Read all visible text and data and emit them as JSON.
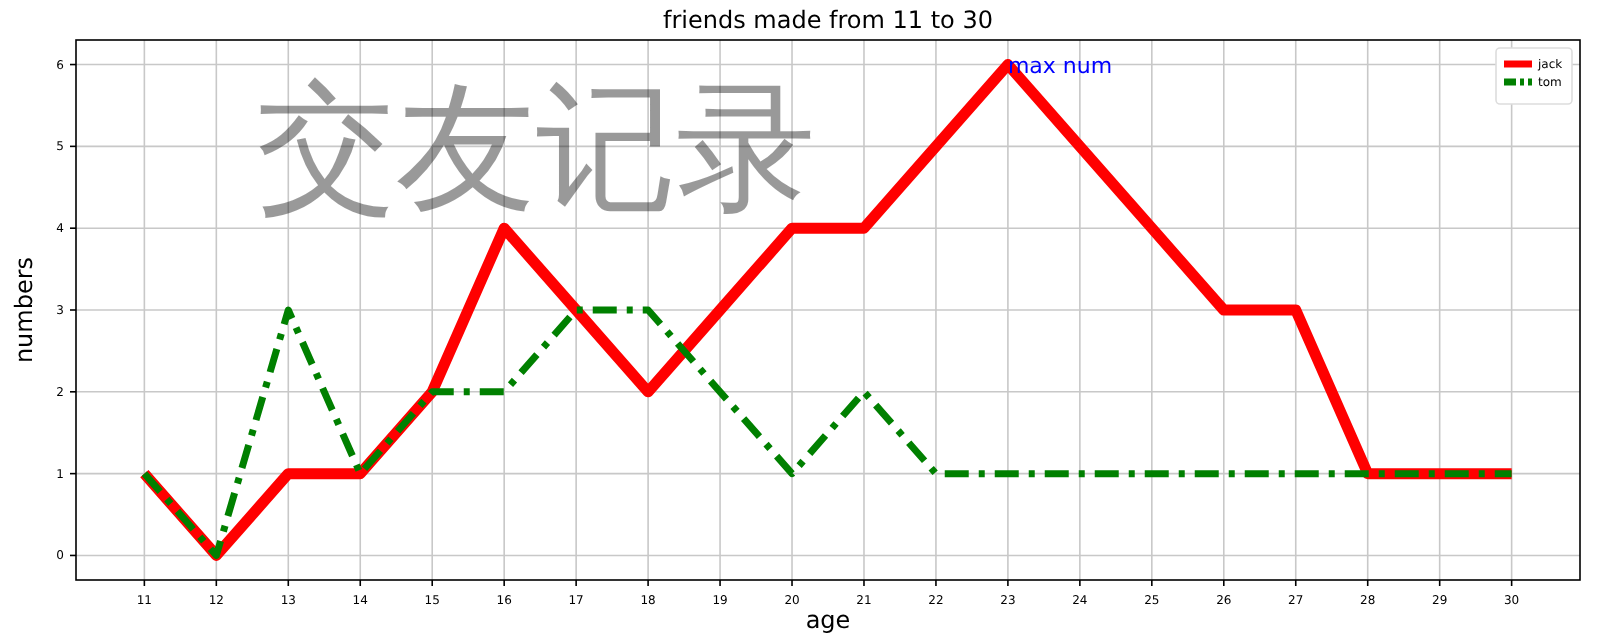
{
  "chart_data": {
    "type": "line",
    "title": "friends made from 11 to 30",
    "xlabel": "age",
    "ylabel": "numbers",
    "x": [
      11,
      12,
      13,
      14,
      15,
      16,
      17,
      18,
      19,
      20,
      21,
      22,
      23,
      24,
      25,
      26,
      27,
      28,
      29,
      30
    ],
    "series": [
      {
        "name": "jack",
        "color": "#ff0000",
        "line_style": "solid",
        "values": [
          1,
          0,
          1,
          1,
          2,
          4,
          3,
          2,
          3,
          4,
          4,
          5,
          6,
          5,
          4,
          3,
          3,
          1,
          1,
          1
        ]
      },
      {
        "name": "tom",
        "color": "#008000",
        "line_style": "dashdot",
        "values": [
          1,
          0,
          3,
          1,
          2,
          2,
          3,
          3,
          2,
          1,
          2,
          1,
          1,
          1,
          1,
          1,
          1,
          1,
          1,
          1
        ]
      }
    ],
    "xlim": [
      10.05,
      30.95
    ],
    "ylim": [
      -0.3,
      6.3
    ],
    "xticks": [
      11,
      12,
      13,
      14,
      15,
      16,
      17,
      18,
      19,
      20,
      21,
      22,
      23,
      24,
      25,
      26,
      27,
      28,
      29,
      30
    ],
    "yticks": [
      0,
      1,
      2,
      3,
      4,
      5,
      6
    ],
    "grid": true,
    "legend": "top right",
    "marker": "none",
    "annotations": [
      {
        "text": "max num",
        "x": 23,
        "y": 6
      },
      "交友记录"
    ]
  }
}
